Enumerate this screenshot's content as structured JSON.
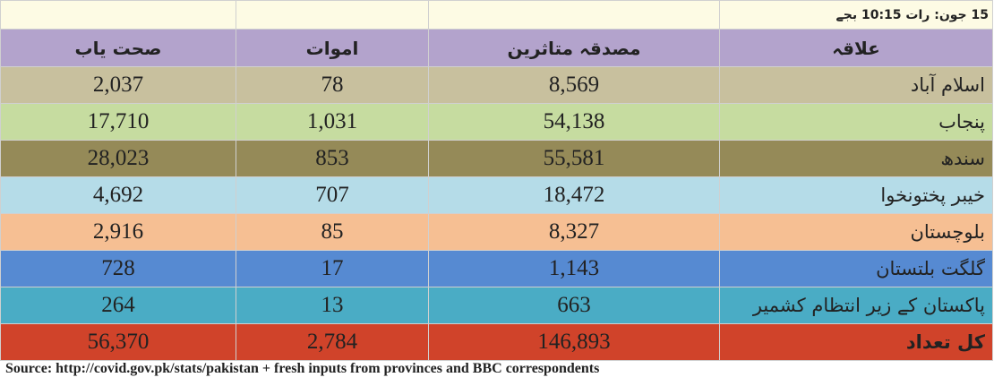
{
  "header": {
    "date": "15 جون: رات 10:15 بجے"
  },
  "table": {
    "columns": [
      "علاقہ",
      "مصدقہ متاثرین",
      "اموات",
      "صحت یاب"
    ],
    "rows": [
      [
        "اسلام آباد",
        "8,569",
        "78",
        "2,037"
      ],
      [
        "پنجاب",
        "54,138",
        "1,031",
        "17,710"
      ],
      [
        "سندھ",
        "55,581",
        "853",
        "28,023"
      ],
      [
        "خیبر پختونخوا",
        "18,472",
        "707",
        "4,692"
      ],
      [
        "بلوچستان",
        "8,327",
        "85",
        "2,916"
      ],
      [
        "گلگت بلتستان",
        "1,143",
        "17",
        "728"
      ],
      [
        "پاکستان کے زیر انتظام کشمیر",
        "663",
        "13",
        "264"
      ],
      [
        "کل تعداد",
        "146,893",
        "2,784",
        "56,370"
      ]
    ]
  },
  "source": "Source: http://covid.gov.pk/stats/pakistan + fresh inputs from provinces and BBC correspondents"
}
